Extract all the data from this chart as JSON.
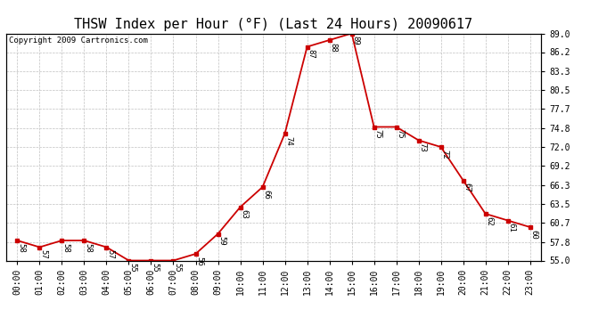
{
  "title": "THSW Index per Hour (°F) (Last 24 Hours) 20090617",
  "copyright": "Copyright 2009 Cartronics.com",
  "hours": [
    0,
    1,
    2,
    3,
    4,
    5,
    6,
    7,
    8,
    9,
    10,
    11,
    12,
    13,
    14,
    15,
    16,
    17,
    18,
    19,
    20,
    21,
    22,
    23
  ],
  "values": [
    58,
    57,
    58,
    58,
    57,
    55,
    55,
    55,
    56,
    59,
    63,
    66,
    74,
    87,
    88,
    89,
    75,
    75,
    73,
    72,
    67,
    62,
    61,
    60
  ],
  "xlabels": [
    "00:00",
    "01:00",
    "02:00",
    "03:00",
    "04:00",
    "05:00",
    "06:00",
    "07:00",
    "08:00",
    "09:00",
    "10:00",
    "11:00",
    "12:00",
    "13:00",
    "14:00",
    "15:00",
    "16:00",
    "17:00",
    "18:00",
    "19:00",
    "20:00",
    "21:00",
    "22:00",
    "23:00"
  ],
  "yticks": [
    55.0,
    57.8,
    60.7,
    63.5,
    66.3,
    69.2,
    72.0,
    74.8,
    77.7,
    80.5,
    83.3,
    86.2,
    89.0
  ],
  "ylim": [
    55.0,
    89.0
  ],
  "line_color": "#cc0000",
  "marker_color": "#cc0000",
  "bg_color": "#ffffff",
  "plot_bg": "#ffffff",
  "grid_color": "#c0c0c0",
  "title_fontsize": 11,
  "label_fontsize": 7,
  "annotation_fontsize": 6.5,
  "copyright_fontsize": 6.5
}
